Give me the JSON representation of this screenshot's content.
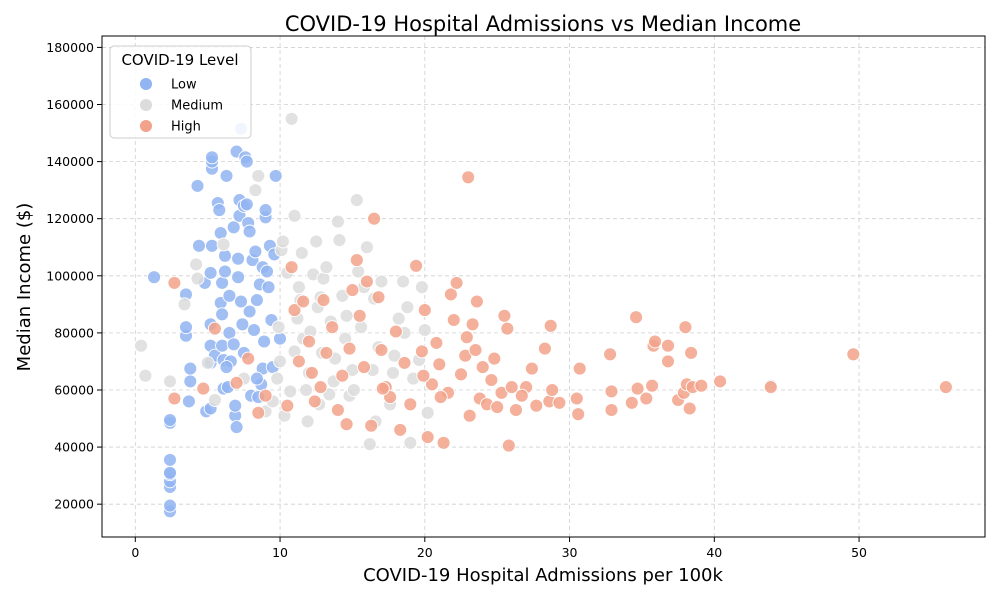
{
  "chart_data": {
    "type": "scatter",
    "title": "COVID-19 Hospital Admissions vs Median Income",
    "xlabel": "COVID-19 Hospital Admissions per 100k",
    "ylabel": "Median Income ($)",
    "xlim": [
      -2.3,
      58.7
    ],
    "ylim": [
      8500,
      184000
    ],
    "xticks": [
      0,
      10,
      20,
      30,
      40,
      50
    ],
    "yticks": [
      20000,
      40000,
      60000,
      80000,
      100000,
      120000,
      140000,
      160000,
      180000
    ],
    "grid": true,
    "legend": {
      "title": "COVID-19 Level",
      "position": "top-left"
    },
    "series": [
      {
        "name": "Low",
        "color": "#92b4f2",
        "points": [
          [
            1.3,
            99500
          ],
          [
            2.4,
            17500
          ],
          [
            2.4,
            19500
          ],
          [
            2.4,
            26000
          ],
          [
            2.4,
            28000
          ],
          [
            2.4,
            30500
          ],
          [
            2.4,
            31000
          ],
          [
            2.4,
            35500
          ],
          [
            2.4,
            48500
          ],
          [
            2.4,
            49500
          ],
          [
            3.5,
            79000
          ],
          [
            3.5,
            82000
          ],
          [
            3.5,
            93500
          ],
          [
            3.7,
            56000
          ],
          [
            3.8,
            63000
          ],
          [
            3.8,
            67500
          ],
          [
            4.3,
            131500
          ],
          [
            4.4,
            110500
          ],
          [
            4.8,
            97500
          ],
          [
            4.9,
            52500
          ],
          [
            5.2,
            53500
          ],
          [
            5.2,
            69500
          ],
          [
            5.2,
            75500
          ],
          [
            5.2,
            83000
          ],
          [
            5.2,
            101000
          ],
          [
            5.3,
            137500
          ],
          [
            5.3,
            140000
          ],
          [
            5.3,
            141500
          ],
          [
            5.3,
            110500
          ],
          [
            5.5,
            72000
          ],
          [
            5.7,
            125500
          ],
          [
            5.8,
            123000
          ],
          [
            5.9,
            90500
          ],
          [
            5.9,
            115000
          ],
          [
            6.0,
            75500
          ],
          [
            6.0,
            86500
          ],
          [
            6.0,
            97500
          ],
          [
            6.1,
            60500
          ],
          [
            6.1,
            70500
          ],
          [
            6.2,
            101500
          ],
          [
            6.2,
            107000
          ],
          [
            6.3,
            135000
          ],
          [
            6.4,
            61000
          ],
          [
            6.5,
            80000
          ],
          [
            6.5,
            93000
          ],
          [
            6.6,
            70000
          ],
          [
            6.8,
            117000
          ],
          [
            6.9,
            51000
          ],
          [
            6.9,
            54500
          ],
          [
            7.0,
            143500
          ],
          [
            7.0,
            47000
          ],
          [
            7.1,
            99500
          ],
          [
            7.1,
            106000
          ],
          [
            7.2,
            121000
          ],
          [
            7.2,
            126500
          ],
          [
            7.3,
            151500
          ],
          [
            7.3,
            91000
          ],
          [
            7.4,
            83000
          ],
          [
            7.5,
            124500
          ],
          [
            7.6,
            141500
          ],
          [
            7.7,
            140000
          ],
          [
            7.7,
            125000
          ],
          [
            7.8,
            118500
          ],
          [
            7.9,
            115500
          ],
          [
            8.0,
            58000
          ],
          [
            8.1,
            105500
          ],
          [
            8.2,
            81000
          ],
          [
            8.3,
            108500
          ],
          [
            8.4,
            91500
          ],
          [
            8.6,
            97000
          ],
          [
            8.7,
            62000
          ],
          [
            8.8,
            103000
          ],
          [
            8.8,
            67500
          ],
          [
            8.9,
            77000
          ],
          [
            9.0,
            120500
          ],
          [
            9.0,
            123000
          ],
          [
            9.1,
            101500
          ],
          [
            9.2,
            96000
          ],
          [
            9.3,
            110500
          ],
          [
            9.4,
            84500
          ],
          [
            9.5,
            68000
          ],
          [
            9.6,
            107500
          ],
          [
            9.7,
            135000
          ],
          [
            10.0,
            78000
          ],
          [
            8.5,
            57500
          ],
          [
            6.8,
            76000
          ],
          [
            7.5,
            73000
          ],
          [
            6.3,
            68000
          ],
          [
            7.9,
            87500
          ],
          [
            8.4,
            64000
          ]
        ]
      },
      {
        "name": "Medium",
        "color": "#dcdcdc",
        "points": [
          [
            0.4,
            75500
          ],
          [
            0.7,
            65000
          ],
          [
            2.4,
            63000
          ],
          [
            3.4,
            90000
          ],
          [
            4.2,
            104000
          ],
          [
            4.3,
            99000
          ],
          [
            5.0,
            69500
          ],
          [
            5.5,
            56500
          ],
          [
            6.1,
            111000
          ],
          [
            7.5,
            64000
          ],
          [
            8.3,
            130000
          ],
          [
            8.5,
            135000
          ],
          [
            9.0,
            52500
          ],
          [
            9.5,
            56000
          ],
          [
            9.8,
            64000
          ],
          [
            10.0,
            70000
          ],
          [
            10.1,
            109000
          ],
          [
            10.2,
            112000
          ],
          [
            10.3,
            51000
          ],
          [
            10.5,
            101000
          ],
          [
            10.8,
            155000
          ],
          [
            11.0,
            121000
          ],
          [
            11.2,
            85000
          ],
          [
            11.3,
            96000
          ],
          [
            11.5,
            108000
          ],
          [
            11.6,
            78000
          ],
          [
            11.8,
            60000
          ],
          [
            11.9,
            49000
          ],
          [
            12.0,
            66000
          ],
          [
            12.3,
            100500
          ],
          [
            12.5,
            112000
          ],
          [
            12.6,
            89000
          ],
          [
            12.7,
            55000
          ],
          [
            12.9,
            73000
          ],
          [
            13.0,
            99000
          ],
          [
            13.2,
            103000
          ],
          [
            13.5,
            84000
          ],
          [
            13.7,
            63000
          ],
          [
            14.0,
            119000
          ],
          [
            14.1,
            112500
          ],
          [
            14.3,
            93000
          ],
          [
            14.5,
            78000
          ],
          [
            14.8,
            58000
          ],
          [
            15.0,
            67000
          ],
          [
            15.3,
            126500
          ],
          [
            15.4,
            101500
          ],
          [
            15.6,
            82000
          ],
          [
            15.8,
            96000
          ],
          [
            16.0,
            110000
          ],
          [
            16.2,
            41000
          ],
          [
            16.4,
            67000
          ],
          [
            16.6,
            49000
          ],
          [
            16.8,
            75000
          ],
          [
            17.0,
            98000
          ],
          [
            17.3,
            61000
          ],
          [
            17.6,
            55000
          ],
          [
            17.9,
            72000
          ],
          [
            18.2,
            85000
          ],
          [
            18.5,
            98000
          ],
          [
            18.6,
            80000
          ],
          [
            18.8,
            89000
          ],
          [
            19.0,
            41500
          ],
          [
            19.2,
            64000
          ],
          [
            19.6,
            70500
          ],
          [
            19.8,
            96000
          ],
          [
            20.0,
            81000
          ],
          [
            20.2,
            52000
          ],
          [
            43.9,
            61500
          ],
          [
            11.4,
            91500
          ],
          [
            12.1,
            80500
          ],
          [
            13.8,
            71000
          ],
          [
            14.6,
            86000
          ],
          [
            15.1,
            60000
          ],
          [
            16.5,
            92000
          ],
          [
            17.8,
            66000
          ],
          [
            10.7,
            59500
          ],
          [
            12.8,
            92500
          ],
          [
            9.9,
            82000
          ],
          [
            11.0,
            73500
          ],
          [
            13.4,
            58500
          ]
        ]
      },
      {
        "name": "High",
        "color": "#f2a28a",
        "points": [
          [
            2.7,
            97500
          ],
          [
            2.7,
            57000
          ],
          [
            4.7,
            60500
          ],
          [
            5.5,
            81500
          ],
          [
            7.0,
            62500
          ],
          [
            7.8,
            71000
          ],
          [
            8.5,
            52000
          ],
          [
            9.0,
            58000
          ],
          [
            10.5,
            54500
          ],
          [
            10.8,
            103000
          ],
          [
            11.0,
            88000
          ],
          [
            11.3,
            70000
          ],
          [
            11.6,
            91000
          ],
          [
            12.0,
            77000
          ],
          [
            12.4,
            56000
          ],
          [
            12.8,
            61000
          ],
          [
            13.0,
            91500
          ],
          [
            13.2,
            73000
          ],
          [
            13.6,
            82000
          ],
          [
            14.0,
            53000
          ],
          [
            14.3,
            65000
          ],
          [
            14.6,
            48000
          ],
          [
            15.0,
            95000
          ],
          [
            15.3,
            105500
          ],
          [
            15.5,
            86000
          ],
          [
            15.8,
            68000
          ],
          [
            16.0,
            98000
          ],
          [
            16.3,
            47500
          ],
          [
            16.5,
            120000
          ],
          [
            16.8,
            92500
          ],
          [
            17.0,
            74000
          ],
          [
            17.3,
            61000
          ],
          [
            17.6,
            57500
          ],
          [
            18.0,
            80500
          ],
          [
            18.3,
            46000
          ],
          [
            18.6,
            69500
          ],
          [
            19.0,
            55000
          ],
          [
            19.4,
            103500
          ],
          [
            19.8,
            73500
          ],
          [
            20.0,
            88000
          ],
          [
            20.2,
            43500
          ],
          [
            20.5,
            62000
          ],
          [
            20.8,
            76500
          ],
          [
            21.0,
            69000
          ],
          [
            21.3,
            41500
          ],
          [
            21.6,
            59000
          ],
          [
            21.8,
            93500
          ],
          [
            22.0,
            84500
          ],
          [
            22.2,
            97500
          ],
          [
            22.5,
            65500
          ],
          [
            22.8,
            72000
          ],
          [
            23.0,
            134500
          ],
          [
            23.1,
            51000
          ],
          [
            23.3,
            83000
          ],
          [
            23.5,
            74000
          ],
          [
            23.6,
            91000
          ],
          [
            23.8,
            57000
          ],
          [
            24.0,
            68000
          ],
          [
            24.3,
            55000
          ],
          [
            24.6,
            63500
          ],
          [
            25.0,
            54000
          ],
          [
            25.3,
            59000
          ],
          [
            25.5,
            86000
          ],
          [
            25.7,
            81500
          ],
          [
            25.8,
            40500
          ],
          [
            26.0,
            61000
          ],
          [
            26.3,
            53000
          ],
          [
            27.0,
            61000
          ],
          [
            27.4,
            67500
          ],
          [
            27.7,
            54500
          ],
          [
            28.3,
            74500
          ],
          [
            28.6,
            56000
          ],
          [
            28.7,
            82500
          ],
          [
            28.8,
            60000
          ],
          [
            29.3,
            55500
          ],
          [
            30.5,
            57000
          ],
          [
            30.6,
            51500
          ],
          [
            30.7,
            67500
          ],
          [
            32.8,
            72500
          ],
          [
            32.9,
            53000
          ],
          [
            32.9,
            59500
          ],
          [
            34.3,
            55500
          ],
          [
            34.6,
            85500
          ],
          [
            34.7,
            60500
          ],
          [
            35.3,
            57000
          ],
          [
            35.7,
            61500
          ],
          [
            35.8,
            75500
          ],
          [
            35.9,
            77000
          ],
          [
            36.8,
            75500
          ],
          [
            36.8,
            70000
          ],
          [
            37.5,
            56500
          ],
          [
            37.9,
            59000
          ],
          [
            38.0,
            82000
          ],
          [
            38.1,
            62000
          ],
          [
            38.3,
            53500
          ],
          [
            38.4,
            73000
          ],
          [
            38.5,
            61000
          ],
          [
            39.1,
            61500
          ],
          [
            40.4,
            63000
          ],
          [
            43.9,
            61000
          ],
          [
            49.6,
            72500
          ],
          [
            56.0,
            61000
          ],
          [
            12.2,
            66000
          ],
          [
            14.8,
            74500
          ],
          [
            17.1,
            60500
          ],
          [
            19.9,
            65000
          ],
          [
            21.1,
            57500
          ],
          [
            22.9,
            78500
          ],
          [
            24.8,
            71000
          ],
          [
            26.7,
            58000
          ]
        ]
      }
    ]
  }
}
